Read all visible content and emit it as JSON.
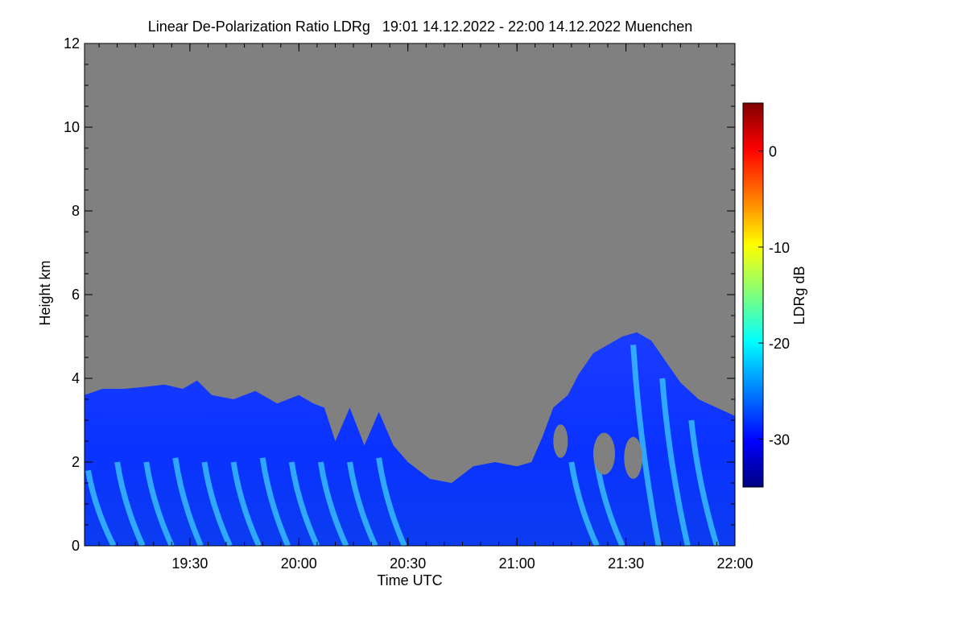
{
  "chart_data": {
    "type": "heatmap",
    "title": "Linear De-Polarization Ratio LDRg   19:01 14.12.2022 - 22:00 14.12.2022 Muenchen",
    "xlabel": "Time UTC",
    "ylabel": "Height km",
    "colorbar_label": "LDRg dB",
    "x_range_minutes_utc": [
      1141,
      1320
    ],
    "x_ticks": [
      {
        "label": "19:30",
        "minute": 1170
      },
      {
        "label": "20:00",
        "minute": 1200
      },
      {
        "label": "20:30",
        "minute": 1230
      },
      {
        "label": "21:00",
        "minute": 1260
      },
      {
        "label": "21:30",
        "minute": 1290
      },
      {
        "label": "22:00",
        "minute": 1320
      }
    ],
    "x_minor_step_minutes": 5,
    "y_range_km": [
      0,
      12
    ],
    "y_ticks": [
      0,
      2,
      4,
      6,
      8,
      10,
      12
    ],
    "y_minor_step_km": 0.5,
    "colorbar_range_db": [
      -35,
      5
    ],
    "colorbar_ticks": [
      {
        "label": "0",
        "value": 0
      },
      {
        "label": "-10",
        "value": -10
      },
      {
        "label": "-20",
        "value": -20
      },
      {
        "label": "-30",
        "value": -30
      }
    ],
    "no_signal_color": "#808080",
    "colormap": [
      "#00007f",
      "#0000ff",
      "#007fff",
      "#00ffff",
      "#7fff7f",
      "#ffff00",
      "#ff7f00",
      "#ff0000",
      "#7f0000"
    ],
    "echo_top_profile_km": [
      [
        1141,
        3.6
      ],
      [
        1146,
        3.75
      ],
      [
        1152,
        3.75
      ],
      [
        1158,
        3.8
      ],
      [
        1163,
        3.85
      ],
      [
        1168,
        3.75
      ],
      [
        1172,
        3.95
      ],
      [
        1176,
        3.6
      ],
      [
        1182,
        3.5
      ],
      [
        1188,
        3.7
      ],
      [
        1194,
        3.4
      ],
      [
        1200,
        3.6
      ],
      [
        1204,
        3.4
      ],
      [
        1207,
        3.3
      ],
      [
        1210,
        2.5
      ],
      [
        1214,
        3.3
      ],
      [
        1218,
        2.4
      ],
      [
        1222,
        3.2
      ],
      [
        1226,
        2.4
      ],
      [
        1230,
        2.0
      ],
      [
        1236,
        1.6
      ],
      [
        1242,
        1.5
      ],
      [
        1248,
        1.9
      ],
      [
        1254,
        2.0
      ],
      [
        1260,
        1.9
      ],
      [
        1264,
        2.0
      ],
      [
        1267,
        2.6
      ],
      [
        1270,
        3.3
      ],
      [
        1274,
        3.6
      ],
      [
        1277,
        4.1
      ],
      [
        1281,
        4.6
      ],
      [
        1285,
        4.8
      ],
      [
        1289,
        5.0
      ],
      [
        1293,
        5.1
      ],
      [
        1297,
        4.9
      ],
      [
        1301,
        4.4
      ],
      [
        1305,
        3.9
      ],
      [
        1310,
        3.5
      ],
      [
        1315,
        3.3
      ],
      [
        1320,
        3.1
      ]
    ],
    "high_ldr_streaks": [
      {
        "start_minute": 1142,
        "height_km": 1.8
      },
      {
        "start_minute": 1150,
        "height_km": 2.0
      },
      {
        "start_minute": 1158,
        "height_km": 2.0
      },
      {
        "start_minute": 1166,
        "height_km": 2.1
      },
      {
        "start_minute": 1174,
        "height_km": 2.0
      },
      {
        "start_minute": 1182,
        "height_km": 2.0
      },
      {
        "start_minute": 1190,
        "height_km": 2.1
      },
      {
        "start_minute": 1198,
        "height_km": 2.0
      },
      {
        "start_minute": 1206,
        "height_km": 2.0
      },
      {
        "start_minute": 1214,
        "height_km": 2.0
      },
      {
        "start_minute": 1222,
        "height_km": 2.1
      },
      {
        "start_minute": 1275,
        "height_km": 2.0
      },
      {
        "start_minute": 1282,
        "height_km": 2.0
      },
      {
        "start_minute": 1292,
        "height_km": 4.8
      },
      {
        "start_minute": 1300,
        "height_km": 4.0
      },
      {
        "start_minute": 1308,
        "height_km": 3.0
      }
    ],
    "gap_regions": [
      {
        "minute": 1284,
        "height_km": 2.2,
        "r_minutes": 3,
        "r_km": 0.5
      },
      {
        "minute": 1292,
        "height_km": 2.1,
        "r_minutes": 2.5,
        "r_km": 0.5
      },
      {
        "minute": 1272,
        "height_km": 2.5,
        "r_minutes": 2,
        "r_km": 0.4
      }
    ]
  }
}
